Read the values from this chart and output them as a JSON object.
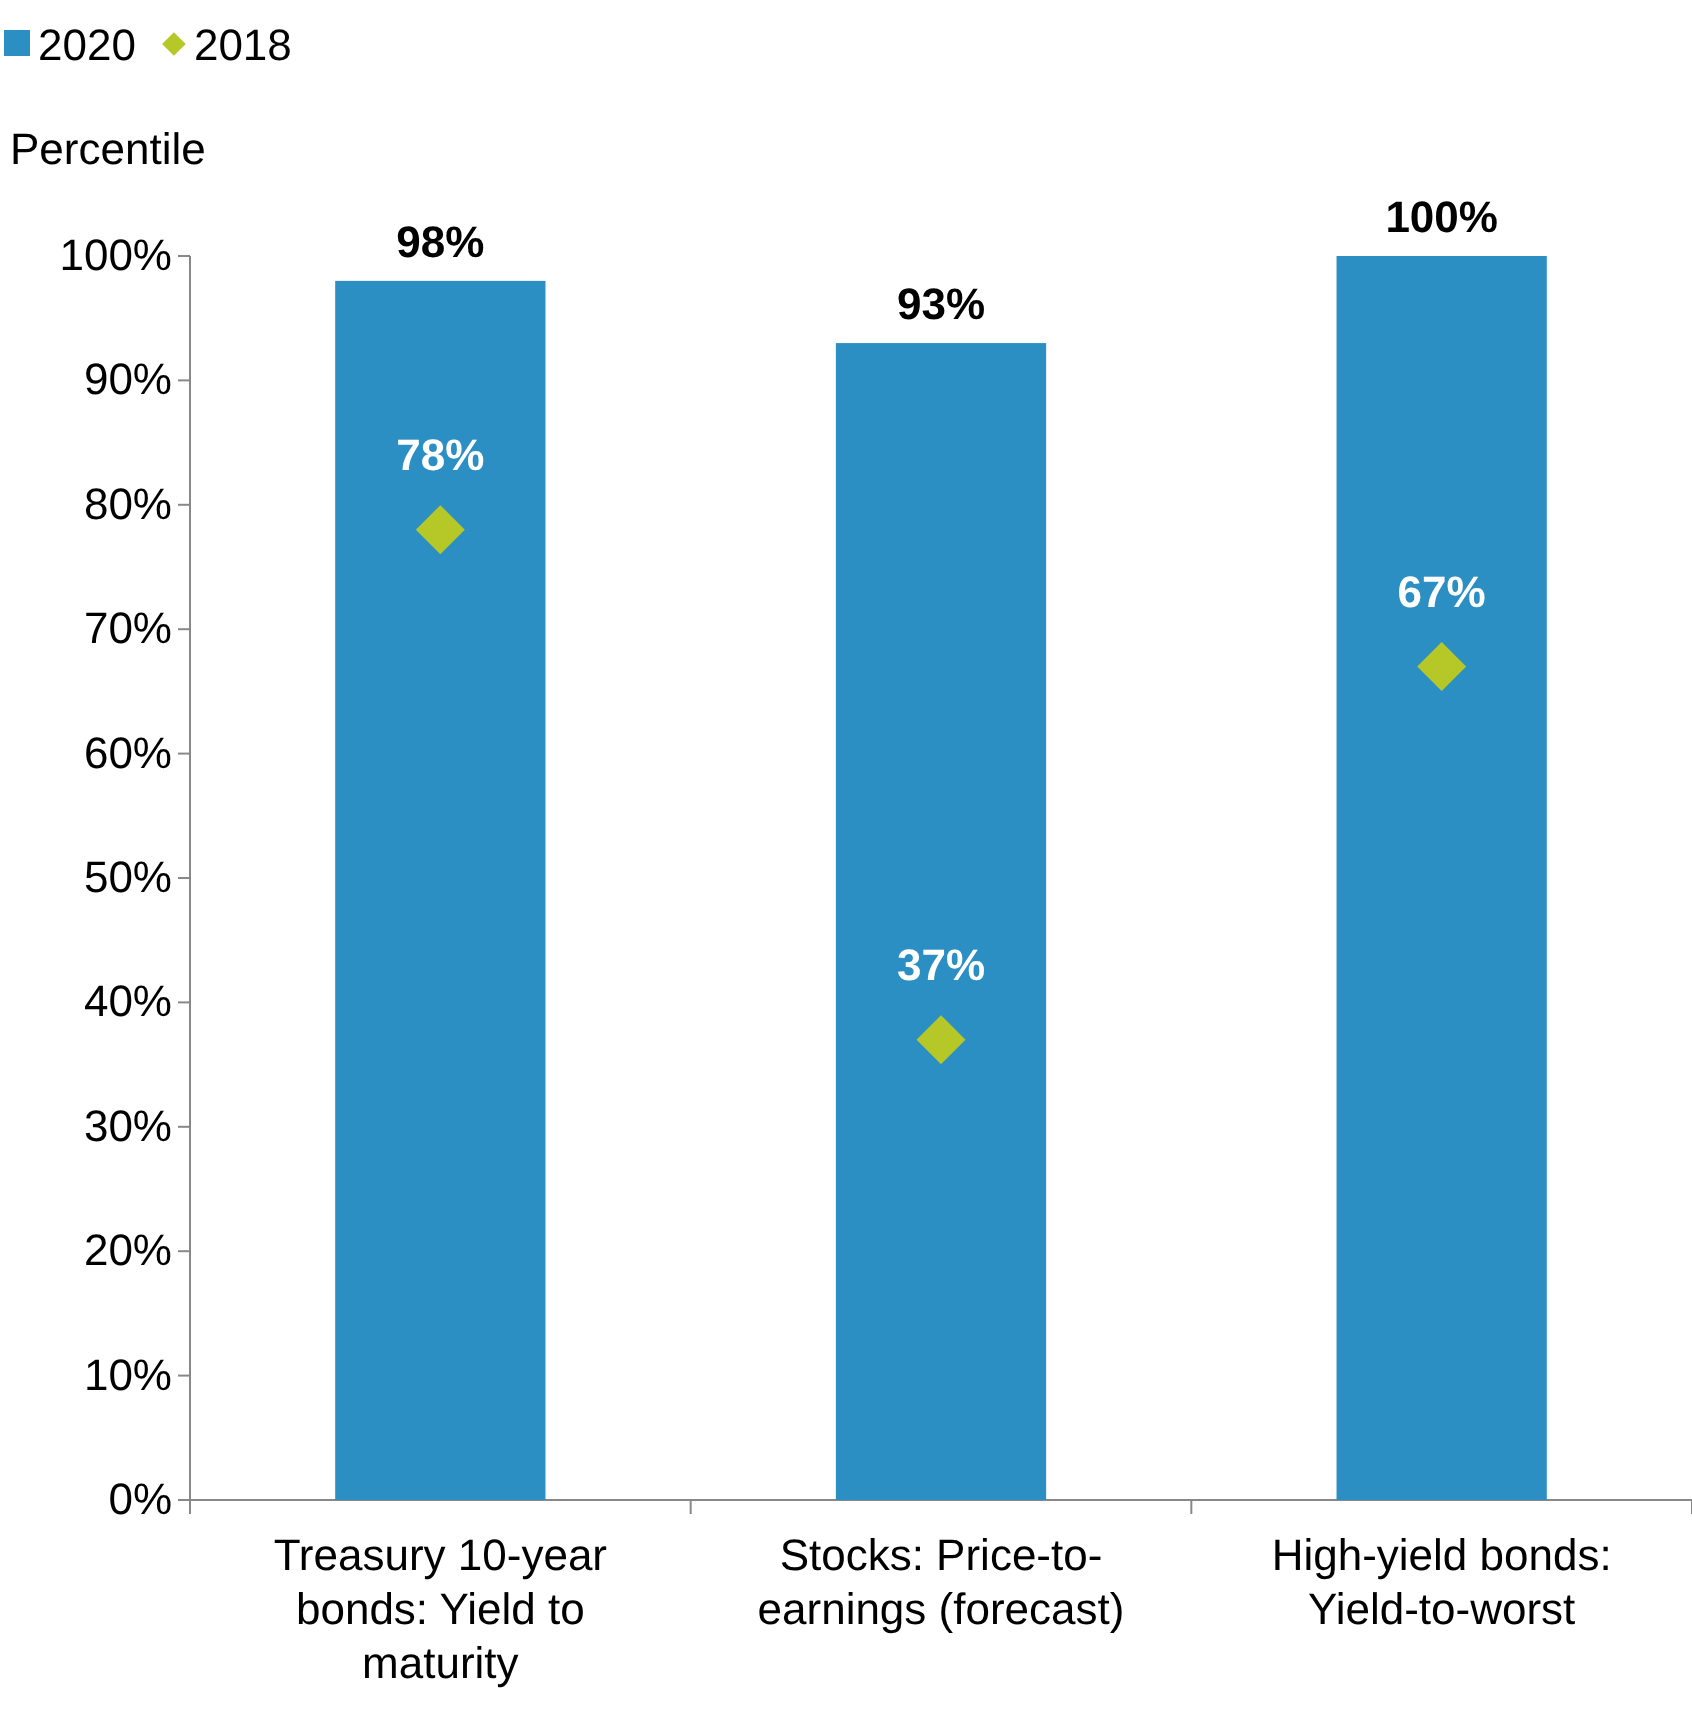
{
  "chart_data": {
    "type": "bar",
    "ylabel": "Percentile",
    "categories": [
      "Treasury 10-year bonds: Yield to maturity",
      "Stocks: Price-to-earnings (forecast)",
      "High-yield bonds: Yield-to-worst"
    ],
    "series": [
      {
        "name": "2020",
        "color": "#2b8fc4",
        "values": [
          98,
          93,
          100
        ],
        "value_labels": [
          "98%",
          "93%",
          "100%"
        ]
      },
      {
        "name": "2018",
        "type": "scatter",
        "color": "#b5c827",
        "x": [
          "Treasury 10-year bonds: Yield to maturity",
          "Stocks: Price-to-earnings (forecast)",
          "High-yield bonds: Yield-to-worst"
        ],
        "values": [
          78,
          37,
          67
        ],
        "value_labels": [
          "78%",
          "37%",
          "67%"
        ]
      }
    ],
    "ylim": [
      0,
      100
    ],
    "yticks": [
      {
        "value": 0,
        "label": "0%"
      },
      {
        "value": 10,
        "label": "10%"
      },
      {
        "value": 20,
        "label": "20%"
      },
      {
        "value": 30,
        "label": "30%"
      },
      {
        "value": 40,
        "label": "40%"
      },
      {
        "value": 50,
        "label": "50%"
      },
      {
        "value": 60,
        "label": "60%"
      },
      {
        "value": 70,
        "label": "70%"
      },
      {
        "value": 80,
        "label": "80%"
      },
      {
        "value": 90,
        "label": "90%"
      },
      {
        "value": 100,
        "label": "100%"
      }
    ],
    "grid": false,
    "legend": "top left",
    "marker": "diamond"
  }
}
